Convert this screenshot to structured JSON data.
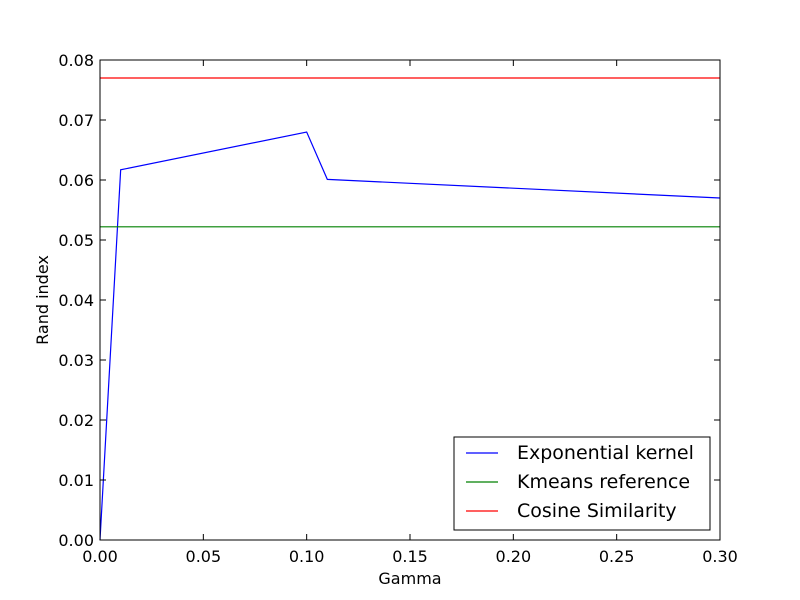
{
  "chart_data": {
    "type": "line",
    "xlabel": "Gamma",
    "ylabel": "Rand index",
    "xlim": [
      0,
      0.3
    ],
    "ylim": [
      0,
      0.08
    ],
    "xticks": [
      "0.00",
      "0.05",
      "0.10",
      "0.15",
      "0.20",
      "0.25",
      "0.30"
    ],
    "yticks": [
      "0.00",
      "0.01",
      "0.02",
      "0.03",
      "0.04",
      "0.05",
      "0.06",
      "0.07",
      "0.08"
    ],
    "legend_position": "lower-right",
    "grid": false,
    "series": [
      {
        "name": "Exponential kernel",
        "color": "#0000ff",
        "x": [
          0.0,
          0.01,
          0.1,
          0.11,
          0.3
        ],
        "y": [
          0.0,
          0.0617,
          0.068,
          0.0601,
          0.057
        ]
      },
      {
        "name": "Kmeans reference",
        "color": "#008000",
        "x": [
          0.0,
          0.3
        ],
        "y": [
          0.0522,
          0.0522
        ]
      },
      {
        "name": "Cosine Similarity",
        "color": "#ff0000",
        "x": [
          0.0,
          0.3
        ],
        "y": [
          0.077,
          0.077
        ]
      }
    ]
  }
}
